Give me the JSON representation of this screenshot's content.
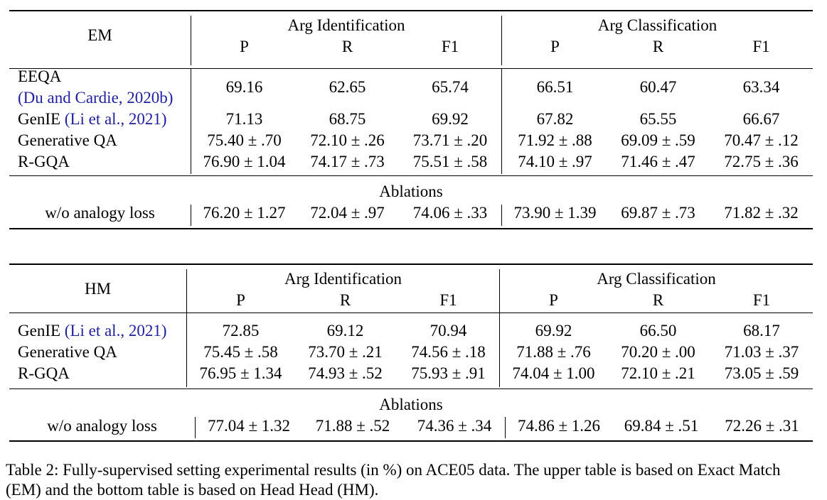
{
  "columns": {
    "group1": "Arg Identification",
    "group2": "Arg Classification",
    "sub": [
      "P",
      "R",
      "F1",
      "P",
      "R",
      "F1"
    ]
  },
  "em_table": {
    "corner": "EM",
    "rows": [
      {
        "name": "EEQA",
        "cite": "(Du and Cardie, 2020b)",
        "values": [
          "69.16",
          "62.65",
          "65.74",
          "66.51",
          "60.47",
          "63.34"
        ]
      },
      {
        "name": "GenIE ",
        "cite": "(Li et al., 2021)",
        "values": [
          "71.13",
          "68.75",
          "69.92",
          "67.82",
          "65.55",
          "66.67"
        ]
      },
      {
        "name": "Generative QA",
        "values": [
          "75.40 ± .70",
          "72.10 ± .26",
          "73.71 ± .20",
          "71.92 ± .88",
          "69.09 ± .59",
          "70.47 ± .12"
        ]
      },
      {
        "name": "R-GQA",
        "values": [
          "76.90 ± 1.04",
          "74.17 ± .73",
          "75.51 ± .58",
          "74.10 ± .97",
          "71.46 ± .47",
          "72.75 ± .36"
        ]
      }
    ],
    "ablation_title": "Ablations",
    "ablation": {
      "name": "w/o analogy loss",
      "values": [
        "76.20 ± 1.27",
        "72.04 ± .97",
        "74.06 ± .33",
        "73.90 ± 1.39",
        "69.87 ± .73",
        "71.82 ± .32"
      ]
    }
  },
  "hm_table": {
    "corner": "HM",
    "rows": [
      {
        "name": "GenIE ",
        "cite": "(Li et al., 2021)",
        "values": [
          "72.85",
          "69.12",
          "70.94",
          "69.92",
          "66.50",
          "68.17"
        ]
      },
      {
        "name": "Generative QA",
        "values": [
          "75.45 ± .58",
          "73.70 ± .21",
          "74.56 ± .18",
          "71.88 ± .76",
          "70.20 ± .00",
          "71.03 ± .37"
        ]
      },
      {
        "name": "R-GQA",
        "values": [
          "76.95 ± 1.34",
          "74.93 ± .52",
          "75.93 ± .91",
          "74.04 ± 1.00",
          "72.10 ± .21",
          "73.05 ± .59"
        ]
      }
    ],
    "ablation_title": "Ablations",
    "ablation": {
      "name": "w/o analogy loss",
      "values": [
        "77.04 ± 1.32",
        "71.88 ± .52",
        "74.36 ± .34",
        "74.86 ± 1.26",
        "69.84 ± .51",
        "72.26 ± .31"
      ]
    }
  },
  "caption": "Table 2: Fully-supervised setting experimental results (in %) on ACE05 data. The upper table is based on Exact Match (EM) and the bottom table is based on Head Head (HM)."
}
